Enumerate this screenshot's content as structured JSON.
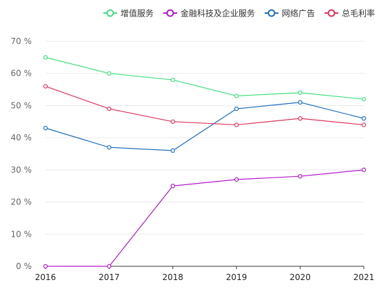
{
  "chart_data": {
    "type": "line",
    "title": "",
    "xlabel": "",
    "ylabel": "",
    "x": [
      "2016",
      "2017",
      "2018",
      "2019",
      "2020",
      "2021"
    ],
    "ylim": [
      0,
      70
    ],
    "y_ticks": [
      0,
      10,
      20,
      30,
      40,
      50,
      60,
      70
    ],
    "y_tick_labels": [
      "0 %",
      "10 %",
      "20 %",
      "30 %",
      "40 %",
      "50 %",
      "60 %",
      "70 %"
    ],
    "grid": true,
    "legend_position": "top-right",
    "series": [
      {
        "name": "增值服务",
        "color": "#3ee07f",
        "values": [
          65,
          60,
          58,
          53,
          54,
          52
        ]
      },
      {
        "name": "金融科技及企业服务",
        "color": "#b318c9",
        "values": [
          0,
          0,
          25,
          27,
          28,
          30
        ]
      },
      {
        "name": "网络广告",
        "color": "#1f6ebd",
        "values": [
          43,
          37,
          36,
          49,
          51,
          46
        ]
      },
      {
        "name": "总毛利率",
        "color": "#e0315a",
        "values": [
          56,
          49,
          45,
          44,
          46,
          44
        ]
      }
    ]
  }
}
